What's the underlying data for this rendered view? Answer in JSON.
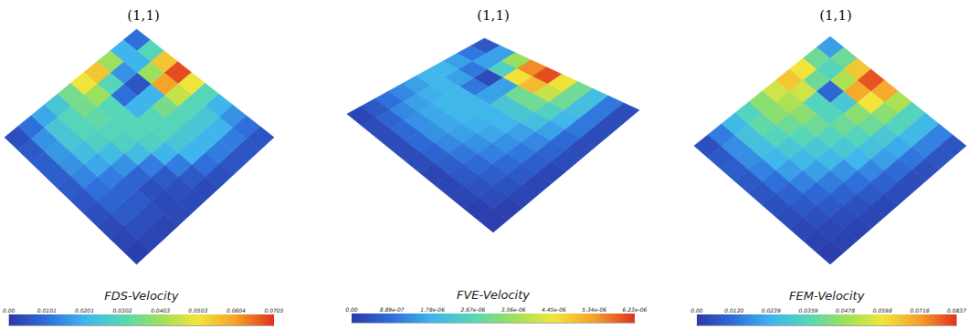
{
  "chart_data": [
    {
      "type": "heatmap",
      "title": "(1,1)",
      "tick_labels": false,
      "cells": [
        [
          0.01,
          0.03,
          0.055,
          0.068,
          0.05,
          0.03,
          0.02,
          0.015,
          0.01,
          0.005
        ],
        [
          0.02,
          0.02,
          0.04,
          0.06,
          0.045,
          0.03,
          0.025,
          0.02,
          0.012,
          0.005
        ],
        [
          0.04,
          0.015,
          0.005,
          0.02,
          0.035,
          0.03,
          0.025,
          0.02,
          0.012,
          0.005
        ],
        [
          0.055,
          0.03,
          0.01,
          0.02,
          0.03,
          0.03,
          0.025,
          0.02,
          0.01,
          0.004
        ],
        [
          0.05,
          0.04,
          0.03,
          0.03,
          0.03,
          0.028,
          0.02,
          0.012,
          0.006,
          0.003
        ],
        [
          0.035,
          0.035,
          0.032,
          0.03,
          0.028,
          0.022,
          0.012,
          0.006,
          0.004,
          0.003
        ],
        [
          0.025,
          0.03,
          0.03,
          0.028,
          0.022,
          0.015,
          0.008,
          0.004,
          0.003,
          0.003
        ],
        [
          0.018,
          0.025,
          0.025,
          0.022,
          0.018,
          0.012,
          0.008,
          0.006,
          0.004,
          0.002
        ],
        [
          0.01,
          0.015,
          0.016,
          0.015,
          0.013,
          0.01,
          0.008,
          0.006,
          0.004,
          0.002
        ],
        [
          0.004,
          0.006,
          0.007,
          0.007,
          0.006,
          0.005,
          0.004,
          0.003,
          0.002,
          0.001
        ]
      ],
      "colorbar": {
        "label": "FDS-Velocity",
        "lim": [
          0,
          0.0705
        ],
        "ticks": [
          {
            "value": 0,
            "label": "0.00"
          },
          {
            "value": 0.0101,
            "label": "0.0101"
          },
          {
            "value": 0.0201,
            "label": "0.0201"
          },
          {
            "value": 0.0302,
            "label": "0.0302"
          },
          {
            "value": 0.0403,
            "label": "0.0403"
          },
          {
            "value": 0.0503,
            "label": "0.0503"
          },
          {
            "value": 0.0604,
            "label": "0.0604"
          },
          {
            "value": 0.0705,
            "label": "0.0705"
          }
        ]
      }
    },
    {
      "type": "heatmap",
      "title": "(1,1)",
      "tick_labels": false,
      "cells": [
        [
          5e-07,
          1.5e-06,
          3.5e-06,
          5.5e-06,
          6e-06,
          4.5e-06,
          3e-06,
          2e-06,
          1e-06,
          3e-07
        ],
        [
          1e-06,
          1.5e-06,
          2.5e-06,
          4.5e-06,
          5e-06,
          4e-06,
          3e-06,
          2e-06,
          1e-06,
          3e-07
        ],
        [
          1.5e-06,
          1e-06,
          3e-07,
          1.5e-06,
          3e-06,
          3e-06,
          2.5e-06,
          1.8e-06,
          1e-06,
          3e-07
        ],
        [
          1.8e-06,
          1.5e-06,
          1e-06,
          1.5e-06,
          2.2e-06,
          2.2e-06,
          2e-06,
          1.5e-06,
          8e-07,
          3e-07
        ],
        [
          1.8e-06,
          1.8e-06,
          1.8e-06,
          1.8e-06,
          1.8e-06,
          1.8e-06,
          1.5e-06,
          1.2e-06,
          7e-07,
          3e-07
        ],
        [
          1.5e-06,
          1.7e-06,
          1.8e-06,
          1.8e-06,
          1.7e-06,
          1.6e-06,
          1.3e-06,
          1e-06,
          6e-07,
          2e-07
        ],
        [
          1.2e-06,
          1.5e-06,
          1.6e-06,
          1.6e-06,
          1.5e-06,
          1.3e-06,
          1.1e-06,
          8e-07,
          5e-07,
          2e-07
        ],
        [
          9e-07,
          1.2e-06,
          1.3e-06,
          1.3e-06,
          1.2e-06,
          1e-06,
          8e-07,
          6e-07,
          4e-07,
          2e-07
        ],
        [
          5e-07,
          7e-07,
          8e-07,
          8e-07,
          7e-07,
          6e-07,
          5e-07,
          4e-07,
          3e-07,
          1e-07
        ],
        [
          2e-07,
          3e-07,
          3e-07,
          3e-07,
          3e-07,
          2e-07,
          2e-07,
          2e-07,
          1e-07,
          1e-07
        ]
      ],
      "colorbar": {
        "label": "FVE-Velocity",
        "lim": [
          0,
          6.23e-06
        ],
        "ticks": [
          {
            "value": 0,
            "label": "0.00"
          },
          {
            "value": 8.89e-07,
            "label": "8.89e-07"
          },
          {
            "value": 1.78e-06,
            "label": "1.78e-06"
          },
          {
            "value": 2.67e-06,
            "label": "2.67e-06"
          },
          {
            "value": 3.56e-06,
            "label": "3.56e-06"
          },
          {
            "value": 4.45e-06,
            "label": "4.45e-06"
          },
          {
            "value": 5.34e-06,
            "label": "5.34e-06"
          },
          {
            "value": 6.23e-06,
            "label": "6.23e-06"
          }
        ]
      }
    },
    {
      "type": "heatmap",
      "title": "(1,1)",
      "tick_labels": false,
      "cells": [
        [
          0.02,
          0.04,
          0.065,
          0.08,
          0.07,
          0.05,
          0.035,
          0.025,
          0.015,
          0.006
        ],
        [
          0.04,
          0.035,
          0.05,
          0.07,
          0.06,
          0.045,
          0.035,
          0.025,
          0.015,
          0.006
        ],
        [
          0.06,
          0.04,
          0.01,
          0.03,
          0.045,
          0.04,
          0.03,
          0.022,
          0.013,
          0.005
        ],
        [
          0.065,
          0.055,
          0.035,
          0.035,
          0.04,
          0.035,
          0.028,
          0.02,
          0.011,
          0.004
        ],
        [
          0.055,
          0.05,
          0.045,
          0.04,
          0.035,
          0.03,
          0.024,
          0.016,
          0.009,
          0.004
        ],
        [
          0.045,
          0.045,
          0.04,
          0.036,
          0.03,
          0.025,
          0.018,
          0.012,
          0.007,
          0.003
        ],
        [
          0.035,
          0.038,
          0.035,
          0.03,
          0.025,
          0.02,
          0.014,
          0.009,
          0.005,
          0.003
        ],
        [
          0.025,
          0.028,
          0.027,
          0.024,
          0.02,
          0.015,
          0.01,
          0.007,
          0.004,
          0.002
        ],
        [
          0.014,
          0.017,
          0.017,
          0.015,
          0.012,
          0.009,
          0.007,
          0.005,
          0.003,
          0.002
        ],
        [
          0.005,
          0.007,
          0.008,
          0.007,
          0.006,
          0.005,
          0.004,
          0.003,
          0.002,
          0.001
        ]
      ],
      "colorbar": {
        "label": "FEM-Velocity",
        "lim": [
          0,
          0.0837
        ],
        "ticks": [
          {
            "value": 0,
            "label": "0.00"
          },
          {
            "value": 0.012,
            "label": "0.0120"
          },
          {
            "value": 0.0239,
            "label": "0.0239"
          },
          {
            "value": 0.0359,
            "label": "0.0359"
          },
          {
            "value": 0.0478,
            "label": "0.0478"
          },
          {
            "value": 0.0598,
            "label": "0.0598"
          },
          {
            "value": 0.0718,
            "label": "0.0718"
          },
          {
            "value": 0.0837,
            "label": "0.0837"
          }
        ]
      }
    }
  ]
}
